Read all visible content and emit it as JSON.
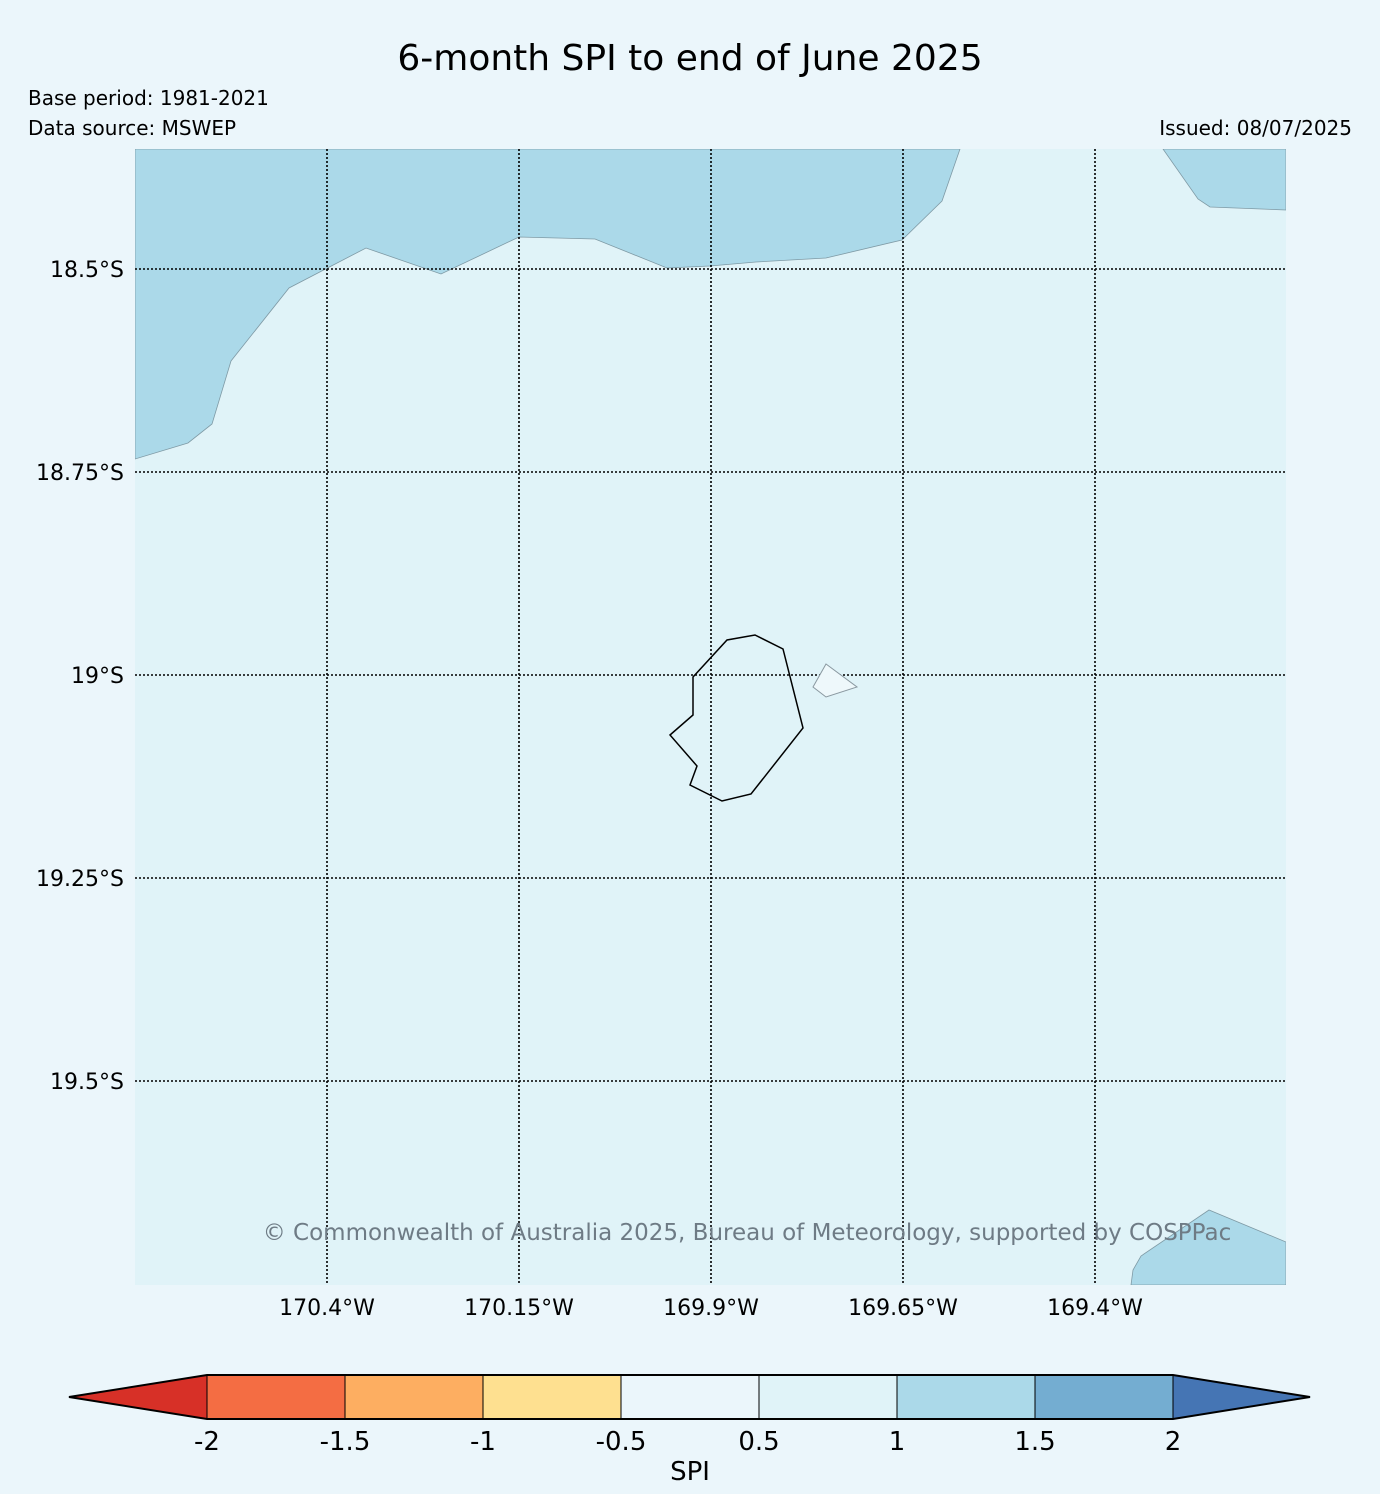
{
  "header": {
    "title": "6-month SPI to end of June 2025",
    "base_period": "Base period: 1981-2021",
    "data_source": "Data source: MSWEP",
    "issued": "Issued: 08/07/2025"
  },
  "map": {
    "lat_ticks": [
      {
        "value": -18.5,
        "label": "18.5°S"
      },
      {
        "value": -18.75,
        "label": "18.75°S"
      },
      {
        "value": -19.0,
        "label": "19°S"
      },
      {
        "value": -19.25,
        "label": "19.25°S"
      },
      {
        "value": -19.5,
        "label": "19.5°S"
      }
    ],
    "lon_ticks": [
      {
        "value": -170.4,
        "label": "170.4°W"
      },
      {
        "value": -170.15,
        "label": "170.15°W"
      },
      {
        "value": -169.9,
        "label": "169.9°W"
      },
      {
        "value": -169.65,
        "label": "169.65°W"
      },
      {
        "value": -169.4,
        "label": "169.4°W"
      }
    ],
    "background_spi_class": "0.5 to 1",
    "copyright": "© Commonwealth of Australia 2025, Bureau of Meteorology, supported by COSPPac"
  },
  "colorbar": {
    "label": "SPI",
    "tick_labels": [
      "-2",
      "-1.5",
      "-1",
      "-0.5",
      "0.5",
      "1",
      "1.5",
      "2"
    ],
    "colors": [
      "#d73027",
      "#f46d43",
      "#fdae61",
      "#fee090",
      "#ebf6fb",
      "#e0f3f8",
      "#abd9e9",
      "#74add1",
      "#4575b4"
    ]
  },
  "colors": {
    "background": "#ebf6fb",
    "spi_0_5_to_1": "#e0f3f8",
    "spi_1_to_1_5": "#abd9e9",
    "watermark": "#6e7b85"
  }
}
